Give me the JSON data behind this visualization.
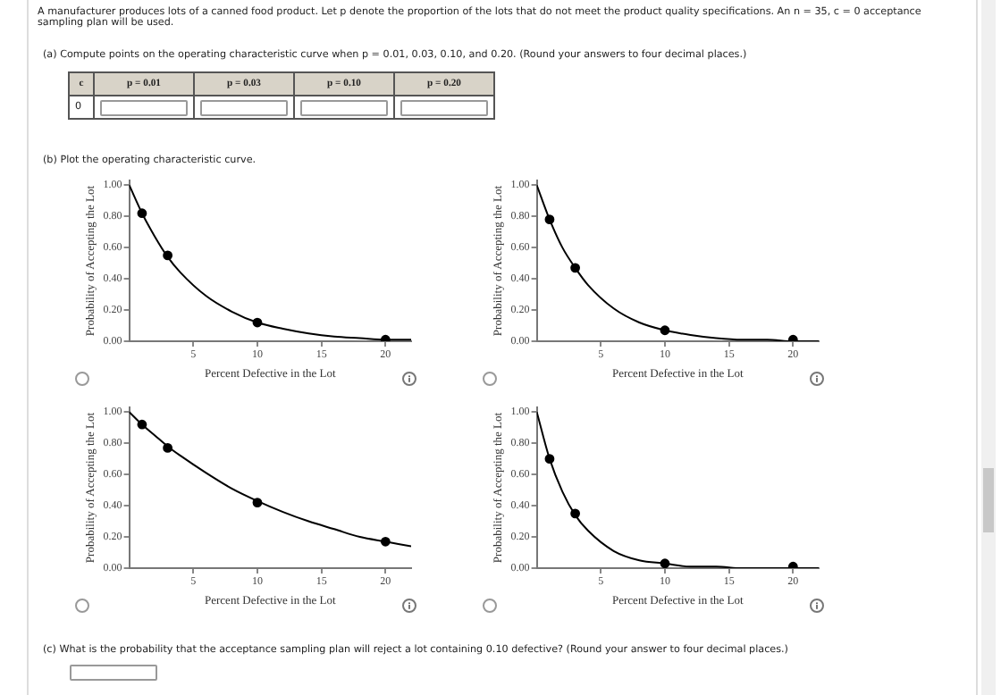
{
  "chart_data": [
    {
      "type": "line",
      "xlabel": "Percent Defective in the Lot",
      "ylabel": "Probability of Accepting the Lot",
      "xlim": [
        0,
        22
      ],
      "xticks": [
        5,
        10,
        15,
        20
      ],
      "ylim": [
        0,
        1.03
      ],
      "yticks": [
        {
          "value": 0,
          "label": "0.00"
        },
        {
          "value": 0.2,
          "label": "0.20"
        },
        {
          "value": 0.4,
          "label": "0.40"
        },
        {
          "value": 0.6,
          "label": "0.60"
        },
        {
          "value": 0.8,
          "label": "0.80"
        },
        {
          "value": 1,
          "label": "1.00"
        }
      ],
      "grid": false,
      "legend": false,
      "marker": "circle",
      "annotations": [
        "A manufacturer produces lots of a canned food product. Let p denote the proportion of the lots that do not meet the product quality specifications. An n = 35, c = 0 acceptance sampling plan will be used.",
        "(a)  Compute points on the operating characteristic curve when p = 0.01, 0.03, 0.10, and 0.20. (Round your answers to four decimal places.)",
        "c",
        "p = 0.01",
        "p = 0.03",
        "p = 0.10",
        "p = 0.20",
        "0",
        "(b)  Plot the operating characteristic curve."
      ],
      "series": [
        {
          "type": "line",
          "marker": "none",
          "color": "#000000",
          "x": [
            0,
            1,
            2,
            3,
            4,
            6,
            8,
            10,
            12,
            14,
            16,
            18,
            20,
            22
          ],
          "values": [
            1,
            0.82,
            0.67,
            0.54,
            0.44,
            0.29,
            0.19,
            0.12,
            0.08,
            0.05,
            0.03,
            0.02,
            0.01,
            0.01
          ]
        },
        {
          "type": "scatter",
          "color": "#000000",
          "x": [
            1,
            3,
            10,
            20
          ],
          "values": [
            0.82,
            0.55,
            0.12,
            0.01
          ]
        }
      ]
    },
    {
      "type": "line",
      "xlabel": "Percent Defective in the Lot",
      "ylabel": "Probability of Accepting the Lot",
      "xlim": [
        0,
        22
      ],
      "xticks": [
        5,
        10,
        15,
        20
      ],
      "ylim": [
        0,
        1.03
      ],
      "yticks": [
        {
          "value": 0,
          "label": "0.00"
        },
        {
          "value": 0.2,
          "label": "0.20"
        },
        {
          "value": 0.4,
          "label": "0.40"
        },
        {
          "value": 0.6,
          "label": "0.60"
        },
        {
          "value": 0.8,
          "label": "0.80"
        },
        {
          "value": 1,
          "label": "1.00"
        }
      ],
      "grid": false,
      "legend": false,
      "marker": "circle",
      "series": [
        {
          "type": "line",
          "marker": "none",
          "color": "#000000",
          "x": [
            0,
            1,
            2,
            3,
            4,
            6,
            8,
            10,
            12,
            14,
            16,
            18,
            20,
            22
          ],
          "values": [
            1,
            0.78,
            0.6,
            0.47,
            0.36,
            0.21,
            0.12,
            0.07,
            0.04,
            0.02,
            0.01,
            0.01,
            0,
            0
          ]
        },
        {
          "type": "scatter",
          "color": "#000000",
          "x": [
            1,
            3,
            10,
            20
          ],
          "values": [
            0.78,
            0.47,
            0.07,
            0.01
          ]
        }
      ]
    },
    {
      "type": "line",
      "xlabel": "Percent Defective in the Lot",
      "ylabel": "Probability of Accepting the Lot",
      "xlim": [
        0,
        22
      ],
      "xticks": [
        5,
        10,
        15,
        20
      ],
      "ylim": [
        0,
        1.03
      ],
      "yticks": [
        {
          "value": 0,
          "label": "0.00"
        },
        {
          "value": 0.2,
          "label": "0.20"
        },
        {
          "value": 0.4,
          "label": "0.40"
        },
        {
          "value": 0.6,
          "label": "0.60"
        },
        {
          "value": 0.8,
          "label": "0.80"
        },
        {
          "value": 1,
          "label": "1.00"
        }
      ],
      "grid": false,
      "legend": false,
      "marker": "circle",
      "series": [
        {
          "type": "line",
          "marker": "none",
          "color": "#000000",
          "x": [
            0,
            1,
            2,
            3,
            4,
            6,
            8,
            10,
            12,
            14,
            16,
            18,
            20,
            22
          ],
          "values": [
            1,
            0.92,
            0.85,
            0.78,
            0.72,
            0.61,
            0.51,
            0.43,
            0.36,
            0.3,
            0.25,
            0.2,
            0.17,
            0.14
          ]
        },
        {
          "type": "scatter",
          "color": "#000000",
          "x": [
            1,
            3,
            10,
            20
          ],
          "values": [
            0.92,
            0.77,
            0.42,
            0.17
          ]
        }
      ]
    },
    {
      "type": "line",
      "xlabel": "Percent Defective in the Lot",
      "ylabel": "Probability of Accepting the Lot",
      "xlim": [
        0,
        22
      ],
      "xticks": [
        5,
        10,
        15,
        20
      ],
      "ylim": [
        0,
        1.03
      ],
      "yticks": [
        {
          "value": 0,
          "label": "0.00"
        },
        {
          "value": 0.2,
          "label": "0.20"
        },
        {
          "value": 0.4,
          "label": "0.40"
        },
        {
          "value": 0.6,
          "label": "0.60"
        },
        {
          "value": 0.8,
          "label": "0.80"
        },
        {
          "value": 1,
          "label": "1.00"
        }
      ],
      "grid": false,
      "legend": false,
      "marker": "circle",
      "annotations": [
        "(c)  What is the probability that the acceptance sampling plan will reject a lot containing 0.10 defective? (Round your answer to four decimal places.)"
      ],
      "series": [
        {
          "type": "line",
          "marker": "none",
          "color": "#000000",
          "x": [
            0,
            1,
            2,
            3,
            4,
            6,
            8,
            10,
            12,
            14,
            16,
            18,
            20,
            22
          ],
          "values": [
            1,
            0.7,
            0.49,
            0.34,
            0.24,
            0.11,
            0.05,
            0.03,
            0.01,
            0.01,
            0,
            0,
            0,
            0
          ]
        },
        {
          "type": "scatter",
          "color": "#000000",
          "x": [
            1,
            3,
            10,
            20
          ],
          "values": [
            0.7,
            0.35,
            0.03,
            0.01
          ]
        }
      ]
    }
  ]
}
